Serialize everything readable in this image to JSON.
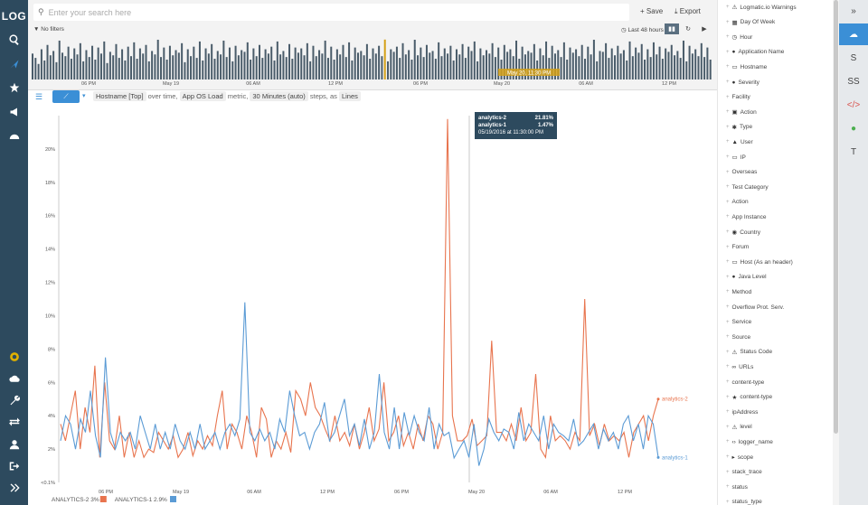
{
  "app": {
    "logo": "LOG"
  },
  "search": {
    "placeholder": "Enter your search here",
    "value": ""
  },
  "toolbar": {
    "save_label": "Save",
    "export_label": "Export"
  },
  "filters_label": "No filters",
  "time_range_label": "Last 48 hours",
  "histogram": {
    "highlight_label": "May 20, 11:30 PM",
    "tick_labels": [
      "06 PM",
      "May 19",
      "06 AM",
      "12 PM",
      "06 PM",
      "May 20",
      "06 AM",
      "12 PM"
    ],
    "bar_values": [
      30,
      25,
      18,
      35,
      22,
      40,
      28,
      33,
      20,
      45,
      31,
      27,
      38,
      24,
      36,
      29,
      42,
      21,
      34,
      26,
      39,
      23,
      37,
      30,
      44,
      19,
      32,
      28,
      41,
      25,
      35,
      22,
      38,
      27,
      43,
      24,
      36,
      30,
      40,
      21,
      33,
      29,
      46,
      26,
      37,
      23,
      39,
      28,
      34,
      31,
      42,
      20,
      35,
      27,
      38,
      25,
      44,
      22,
      36,
      30,
      41,
      24,
      33,
      29,
      45,
      26,
      37,
      21,
      39,
      28,
      34,
      32,
      43,
      23,
      36,
      27,
      40,
      25,
      35,
      30,
      38,
      22,
      44,
      29,
      33,
      26,
      41,
      24,
      37,
      31,
      36,
      28,
      42,
      21,
      39,
      27,
      34,
      30,
      45,
      25,
      38,
      23,
      35,
      29,
      40,
      26,
      43,
      22,
      37,
      31,
      33,
      28,
      41,
      24,
      36,
      30,
      39,
      27,
      44,
      21,
      35,
      32,
      38,
      25,
      42,
      29,
      34,
      23,
      46,
      28,
      37,
      26,
      40,
      31,
      33,
      24,
      43,
      27,
      36,
      30,
      39,
      22,
      35,
      29,
      41,
      25,
      38,
      33,
      44,
      21,
      36,
      28,
      34,
      30,
      42,
      26,
      37,
      23,
      40,
      32,
      35,
      27,
      45,
      24,
      38,
      29,
      33,
      31,
      41,
      22,
      36,
      28,
      44,
      25,
      39,
      30,
      34,
      26,
      43,
      23,
      37,
      31,
      35,
      27,
      40,
      24,
      38,
      29,
      46,
      21,
      33,
      32,
      42,
      25,
      36,
      28,
      39,
      30,
      34,
      22,
      44,
      27,
      37,
      31,
      41,
      23,
      35,
      26,
      43,
      29,
      38,
      24,
      36,
      32,
      40,
      28,
      33,
      25,
      45,
      21,
      39,
      30,
      35,
      27,
      42,
      26,
      37,
      23
    ],
    "highlight_index": 118
  },
  "query": {
    "field_chip": "Hostname [Top]",
    "over_time_text": "over time,",
    "metric_chip": "App OS Load",
    "metric_text": "metric,",
    "steps_chip": "30 Minutes (auto)",
    "steps_text": "steps, as",
    "as_chip": "Lines"
  },
  "tooltip": {
    "rows": [
      {
        "name": "analytics-2",
        "value": "21.81%"
      },
      {
        "name": "analytics-1",
        "value": "1.47%"
      }
    ],
    "timestamp": "05/19/2016 at 11:30:00 PM"
  },
  "legend": [
    {
      "label": "ANALYTICS-2",
      "value": "3%",
      "color": "#e8744e"
    },
    {
      "label": "ANALYTICS-1",
      "value": "2.9%",
      "color": "#5b9bd5"
    }
  ],
  "chart_data": {
    "type": "line",
    "y_ticks": [
      "<0.1%",
      "2%",
      "4%",
      "6%",
      "8%",
      "10%",
      "12%",
      "14%",
      "16%",
      "18%",
      "20%"
    ],
    "x_ticks": [
      "06 PM",
      "May 19",
      "06 AM",
      "12 PM",
      "06 PM",
      "May 20",
      "06 AM",
      "12 PM"
    ],
    "ylim": [
      0,
      22
    ],
    "series": [
      {
        "name": "analytics-2",
        "color": "#e8744e",
        "values": [
          3.5,
          2.5,
          4,
          5.5,
          2,
          4.5,
          3,
          7,
          1.5,
          6,
          2.5,
          2,
          4,
          1.5,
          3,
          1.5,
          2.5,
          1.5,
          2,
          1.8,
          3,
          2.5,
          2,
          2.8,
          1.5,
          2,
          3,
          1.6,
          2.5,
          2,
          2.8,
          2.2,
          4,
          5.5,
          2,
          3.5,
          3,
          2,
          4,
          3,
          1.5,
          4.5,
          3.8,
          1.5,
          2.5,
          2,
          3,
          1.8,
          5.5,
          5,
          4,
          6,
          4.5,
          4,
          3.2,
          2.5,
          4,
          2.5,
          3,
          2.2,
          3.5,
          2,
          3,
          4.5,
          2.5,
          3.2,
          6,
          2.5,
          3,
          4,
          2.2,
          3,
          2,
          3.5,
          2.5,
          4,
          3.5,
          2,
          3,
          21.8,
          4,
          2.5,
          2.5,
          2.8,
          3.8,
          2.2,
          2.5,
          2.8,
          8.5,
          3,
          3,
          2.5,
          3.5,
          2.5,
          4.5,
          2.5,
          3,
          6.5,
          2,
          1.5,
          4,
          2.5,
          2.8,
          2.5,
          2,
          3,
          2.5,
          11,
          2.8,
          3.5,
          2.2,
          3.5,
          2.5,
          2.8,
          2.5,
          3,
          1.5,
          3,
          3.5,
          4,
          2.5,
          4,
          5
        ]
      },
      {
        "name": "analytics-1",
        "color": "#5b9bd5",
        "values": [
          2.5,
          4,
          3.5,
          2,
          3.8,
          3,
          5.5,
          2.8,
          1.5,
          7.5,
          3,
          2,
          3,
          2.5,
          3,
          2,
          4,
          3,
          2,
          3.5,
          2,
          3,
          2,
          3.5,
          2.5,
          2,
          3,
          2,
          3.5,
          2,
          2.5,
          3,
          2,
          3,
          3.5,
          2.8,
          3.8,
          10.8,
          3,
          2.5,
          3.2,
          2.5,
          3,
          2,
          3.8,
          3,
          5.5,
          4,
          2.8,
          3,
          2,
          3,
          3.5,
          4.8,
          2.5,
          3,
          4,
          5,
          2.8,
          3.5,
          2.2,
          3.8,
          2,
          3,
          6.5,
          3,
          2,
          4.5,
          2,
          4.2,
          2.8,
          4,
          3,
          2.5,
          4.5,
          2,
          3.5,
          2.8,
          3,
          1.47,
          2,
          2.5,
          1.5,
          3.5,
          1,
          2,
          3.8,
          3,
          2.5,
          3.2,
          3,
          2,
          4.2,
          2.5,
          3.5,
          3,
          2.5,
          4,
          2,
          3.5,
          3,
          2.8,
          2.5,
          3.8,
          2.2,
          2.5,
          3,
          3.5,
          2,
          3.2,
          2.5,
          3,
          2,
          3.5,
          4,
          2.5,
          3.5,
          2,
          4,
          3.5,
          1.5
        ]
      }
    ]
  },
  "fields": [
    {
      "label": "Logmatic.io Warnings",
      "icon": "warning-icon",
      "glyph": "⚠"
    },
    {
      "label": "Day Of Week",
      "icon": "calendar-icon",
      "glyph": "▦"
    },
    {
      "label": "Hour",
      "icon": "clock-icon",
      "glyph": "◷"
    },
    {
      "label": "Application Name",
      "icon": "app-icon",
      "glyph": "●"
    },
    {
      "label": "Hostname",
      "icon": "monitor-icon",
      "glyph": "▭"
    },
    {
      "label": "Severity",
      "icon": "severity-icon",
      "glyph": "●"
    },
    {
      "label": "Facility",
      "icon": "",
      "glyph": ""
    },
    {
      "label": "Action",
      "icon": "action-icon",
      "glyph": "▣"
    },
    {
      "label": "Type",
      "icon": "gear-icon",
      "glyph": "✱"
    },
    {
      "label": "User",
      "icon": "user-icon",
      "glyph": "▲"
    },
    {
      "label": "IP",
      "icon": "monitor-icon",
      "glyph": "▭"
    },
    {
      "label": "Overseas",
      "icon": "",
      "glyph": ""
    },
    {
      "label": "Test Category",
      "icon": "",
      "glyph": ""
    },
    {
      "label": "Action",
      "icon": "",
      "glyph": ""
    },
    {
      "label": "App Instance",
      "icon": "",
      "glyph": ""
    },
    {
      "label": "Country",
      "icon": "globe-icon",
      "glyph": "◉"
    },
    {
      "label": "Forum",
      "icon": "",
      "glyph": ""
    },
    {
      "label": "Host (As an header)",
      "icon": "monitor-icon",
      "glyph": "▭"
    },
    {
      "label": "Java Level",
      "icon": "info-icon",
      "glyph": "●"
    },
    {
      "label": "Method",
      "icon": "",
      "glyph": ""
    },
    {
      "label": "Overflow Prot. Serv.",
      "icon": "",
      "glyph": ""
    },
    {
      "label": "Service",
      "icon": "",
      "glyph": ""
    },
    {
      "label": "Source",
      "icon": "",
      "glyph": ""
    },
    {
      "label": "Status Code",
      "icon": "warning-icon",
      "glyph": "⚠"
    },
    {
      "label": "URLs",
      "icon": "link-icon",
      "glyph": "∞"
    },
    {
      "label": "content-type",
      "icon": "",
      "glyph": ""
    },
    {
      "label": "content-type",
      "icon": "star-icon",
      "glyph": "★"
    },
    {
      "label": "ipAddress",
      "icon": "",
      "glyph": ""
    },
    {
      "label": "level",
      "icon": "warning-icon",
      "glyph": "⚠"
    },
    {
      "label": "logger_name",
      "icon": "code-icon",
      "glyph": "‹›"
    },
    {
      "label": "scope",
      "icon": "scope-icon",
      "glyph": "▸"
    },
    {
      "label": "stack_trace",
      "icon": "",
      "glyph": ""
    },
    {
      "label": "status",
      "icon": "",
      "glyph": ""
    },
    {
      "label": "status_type",
      "icon": "",
      "glyph": ""
    }
  ],
  "rail": [
    {
      "label": "»",
      "name": "collapse-icon"
    },
    {
      "label": "☁",
      "name": "cloud-icon"
    },
    {
      "label": "S",
      "name": "rail-item-s"
    },
    {
      "label": "SS",
      "name": "rail-item-ss"
    },
    {
      "label": "</>",
      "name": "code-icon"
    },
    {
      "label": "●",
      "name": "globe-icon"
    },
    {
      "label": "T",
      "name": "rail-item-t"
    }
  ],
  "colors": {
    "nav_bg": "#2d4a5e",
    "accent": "#3b8fd6",
    "series_a": "#e8744e",
    "series_b": "#5b9bd5",
    "highlight": "#d4a017"
  }
}
